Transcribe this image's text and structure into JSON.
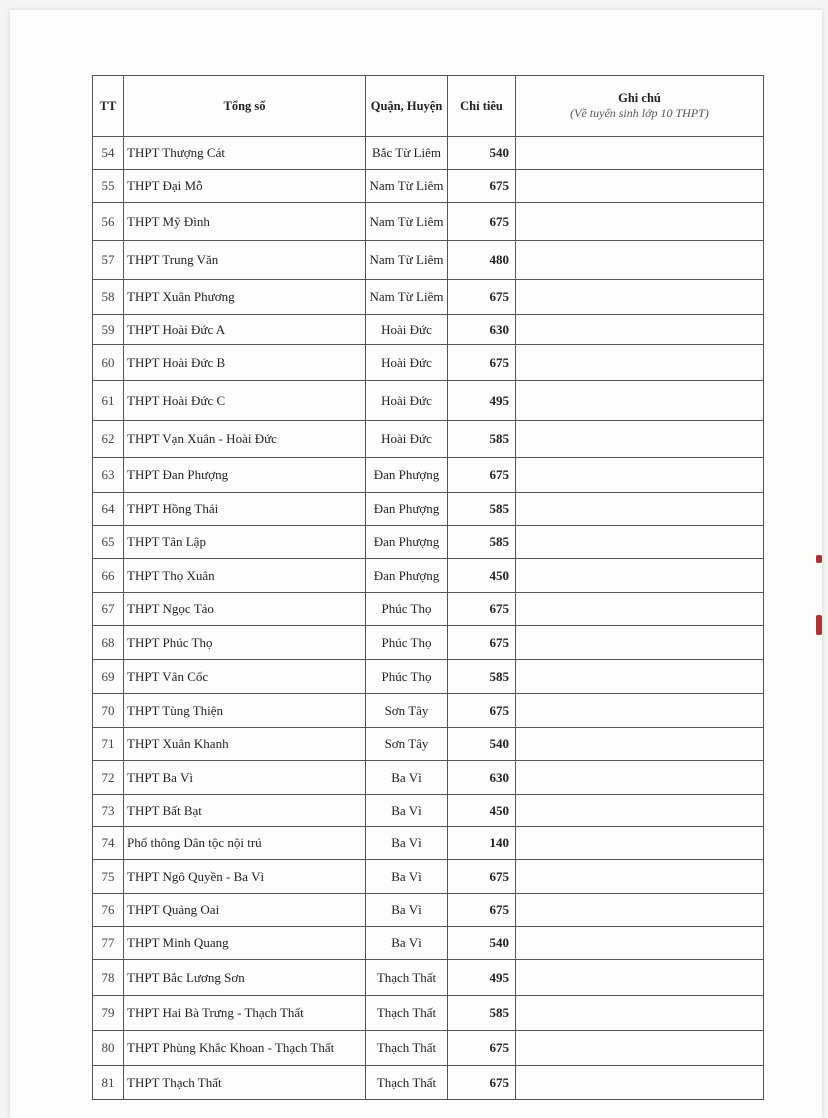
{
  "header": {
    "tt": "TT",
    "name": "Tổng số",
    "district": "Quận, Huyện",
    "quota": "Chỉ tiêu",
    "note": "Ghi chú",
    "note_sub": "(Về tuyển sinh lớp 10 THPT)"
  },
  "rows": [
    {
      "tt": "54",
      "name": "THPT Thượng Cát",
      "district": "Bắc Từ Liêm",
      "quota": "540",
      "note": ""
    },
    {
      "tt": "55",
      "name": "THPT Đại Mỗ",
      "district": "Nam Từ Liêm",
      "quota": "675",
      "note": ""
    },
    {
      "tt": "56",
      "name": "THPT Mỹ Đình",
      "district": "Nam Từ Liêm",
      "quota": "675",
      "note": ""
    },
    {
      "tt": "57",
      "name": "THPT Trung Văn",
      "district": "Nam Từ Liêm",
      "quota": "480",
      "note": ""
    },
    {
      "tt": "58",
      "name": "THPT Xuân Phương",
      "district": "Nam Từ Liêm",
      "quota": "675",
      "note": ""
    },
    {
      "tt": "59",
      "name": "THPT Hoài Đức A",
      "district": "Hoài Đức",
      "quota": "630",
      "note": ""
    },
    {
      "tt": "60",
      "name": "THPT Hoài Đức B",
      "district": "Hoài Đức",
      "quota": "675",
      "note": ""
    },
    {
      "tt": "61",
      "name": "THPT Hoài Đức C",
      "district": "Hoài Đức",
      "quota": "495",
      "note": ""
    },
    {
      "tt": "62",
      "name": "THPT Vạn Xuân - Hoài Đức",
      "district": "Hoài Đức",
      "quota": "585",
      "note": ""
    },
    {
      "tt": "63",
      "name": "THPT Đan Phượng",
      "district": "Đan Phượng",
      "quota": "675",
      "note": ""
    },
    {
      "tt": "64",
      "name": "THPT Hồng Thái",
      "district": "Đan Phượng",
      "quota": "585",
      "note": ""
    },
    {
      "tt": "65",
      "name": "THPT Tân Lập",
      "district": "Đan Phượng",
      "quota": "585",
      "note": ""
    },
    {
      "tt": "66",
      "name": "THPT Thọ Xuân",
      "district": "Đan Phượng",
      "quota": "450",
      "note": ""
    },
    {
      "tt": "67",
      "name": "THPT Ngọc Tảo",
      "district": "Phúc Thọ",
      "quota": "675",
      "note": ""
    },
    {
      "tt": "68",
      "name": "THPT Phúc Thọ",
      "district": "Phúc Thọ",
      "quota": "675",
      "note": ""
    },
    {
      "tt": "69",
      "name": "THPT Vân Cốc",
      "district": "Phúc Thọ",
      "quota": "585",
      "note": ""
    },
    {
      "tt": "70",
      "name": "THPT Tùng Thiện",
      "district": "Sơn Tây",
      "quota": "675",
      "note": ""
    },
    {
      "tt": "71",
      "name": "THPT Xuân Khanh",
      "district": "Sơn Tây",
      "quota": "540",
      "note": ""
    },
    {
      "tt": "72",
      "name": "THPT Ba Vì",
      "district": "Ba Vì",
      "quota": "630",
      "note": ""
    },
    {
      "tt": "73",
      "name": "THPT Bất Bạt",
      "district": "Ba Vì",
      "quota": "450",
      "note": ""
    },
    {
      "tt": "74",
      "name": "Phổ thông Dân tộc nội trú",
      "district": "Ba Vì",
      "quota": "140",
      "note": ""
    },
    {
      "tt": "75",
      "name": "THPT Ngô Quyền - Ba Vì",
      "district": "Ba Vì",
      "quota": "675",
      "note": ""
    },
    {
      "tt": "76",
      "name": "THPT Quảng Oai",
      "district": "Ba Vì",
      "quota": "675",
      "note": ""
    },
    {
      "tt": "77",
      "name": "THPT Minh Quang",
      "district": "Ba Vì",
      "quota": "540",
      "note": ""
    },
    {
      "tt": "78",
      "name": "THPT Bắc Lương Sơn",
      "district": "Thạch Thất",
      "quota": "495",
      "note": ""
    },
    {
      "tt": "79",
      "name": "THPT Hai Bà Trưng - Thạch Thất",
      "district": "Thạch Thất",
      "quota": "585",
      "note": ""
    },
    {
      "tt": "80",
      "name": "THPT Phùng Khắc Khoan - Thạch Thất",
      "district": "Thạch Thất",
      "quota": "675",
      "note": ""
    },
    {
      "tt": "81",
      "name": "THPT Thạch Thất",
      "district": "Thạch Thất",
      "quota": "675",
      "note": ""
    }
  ]
}
